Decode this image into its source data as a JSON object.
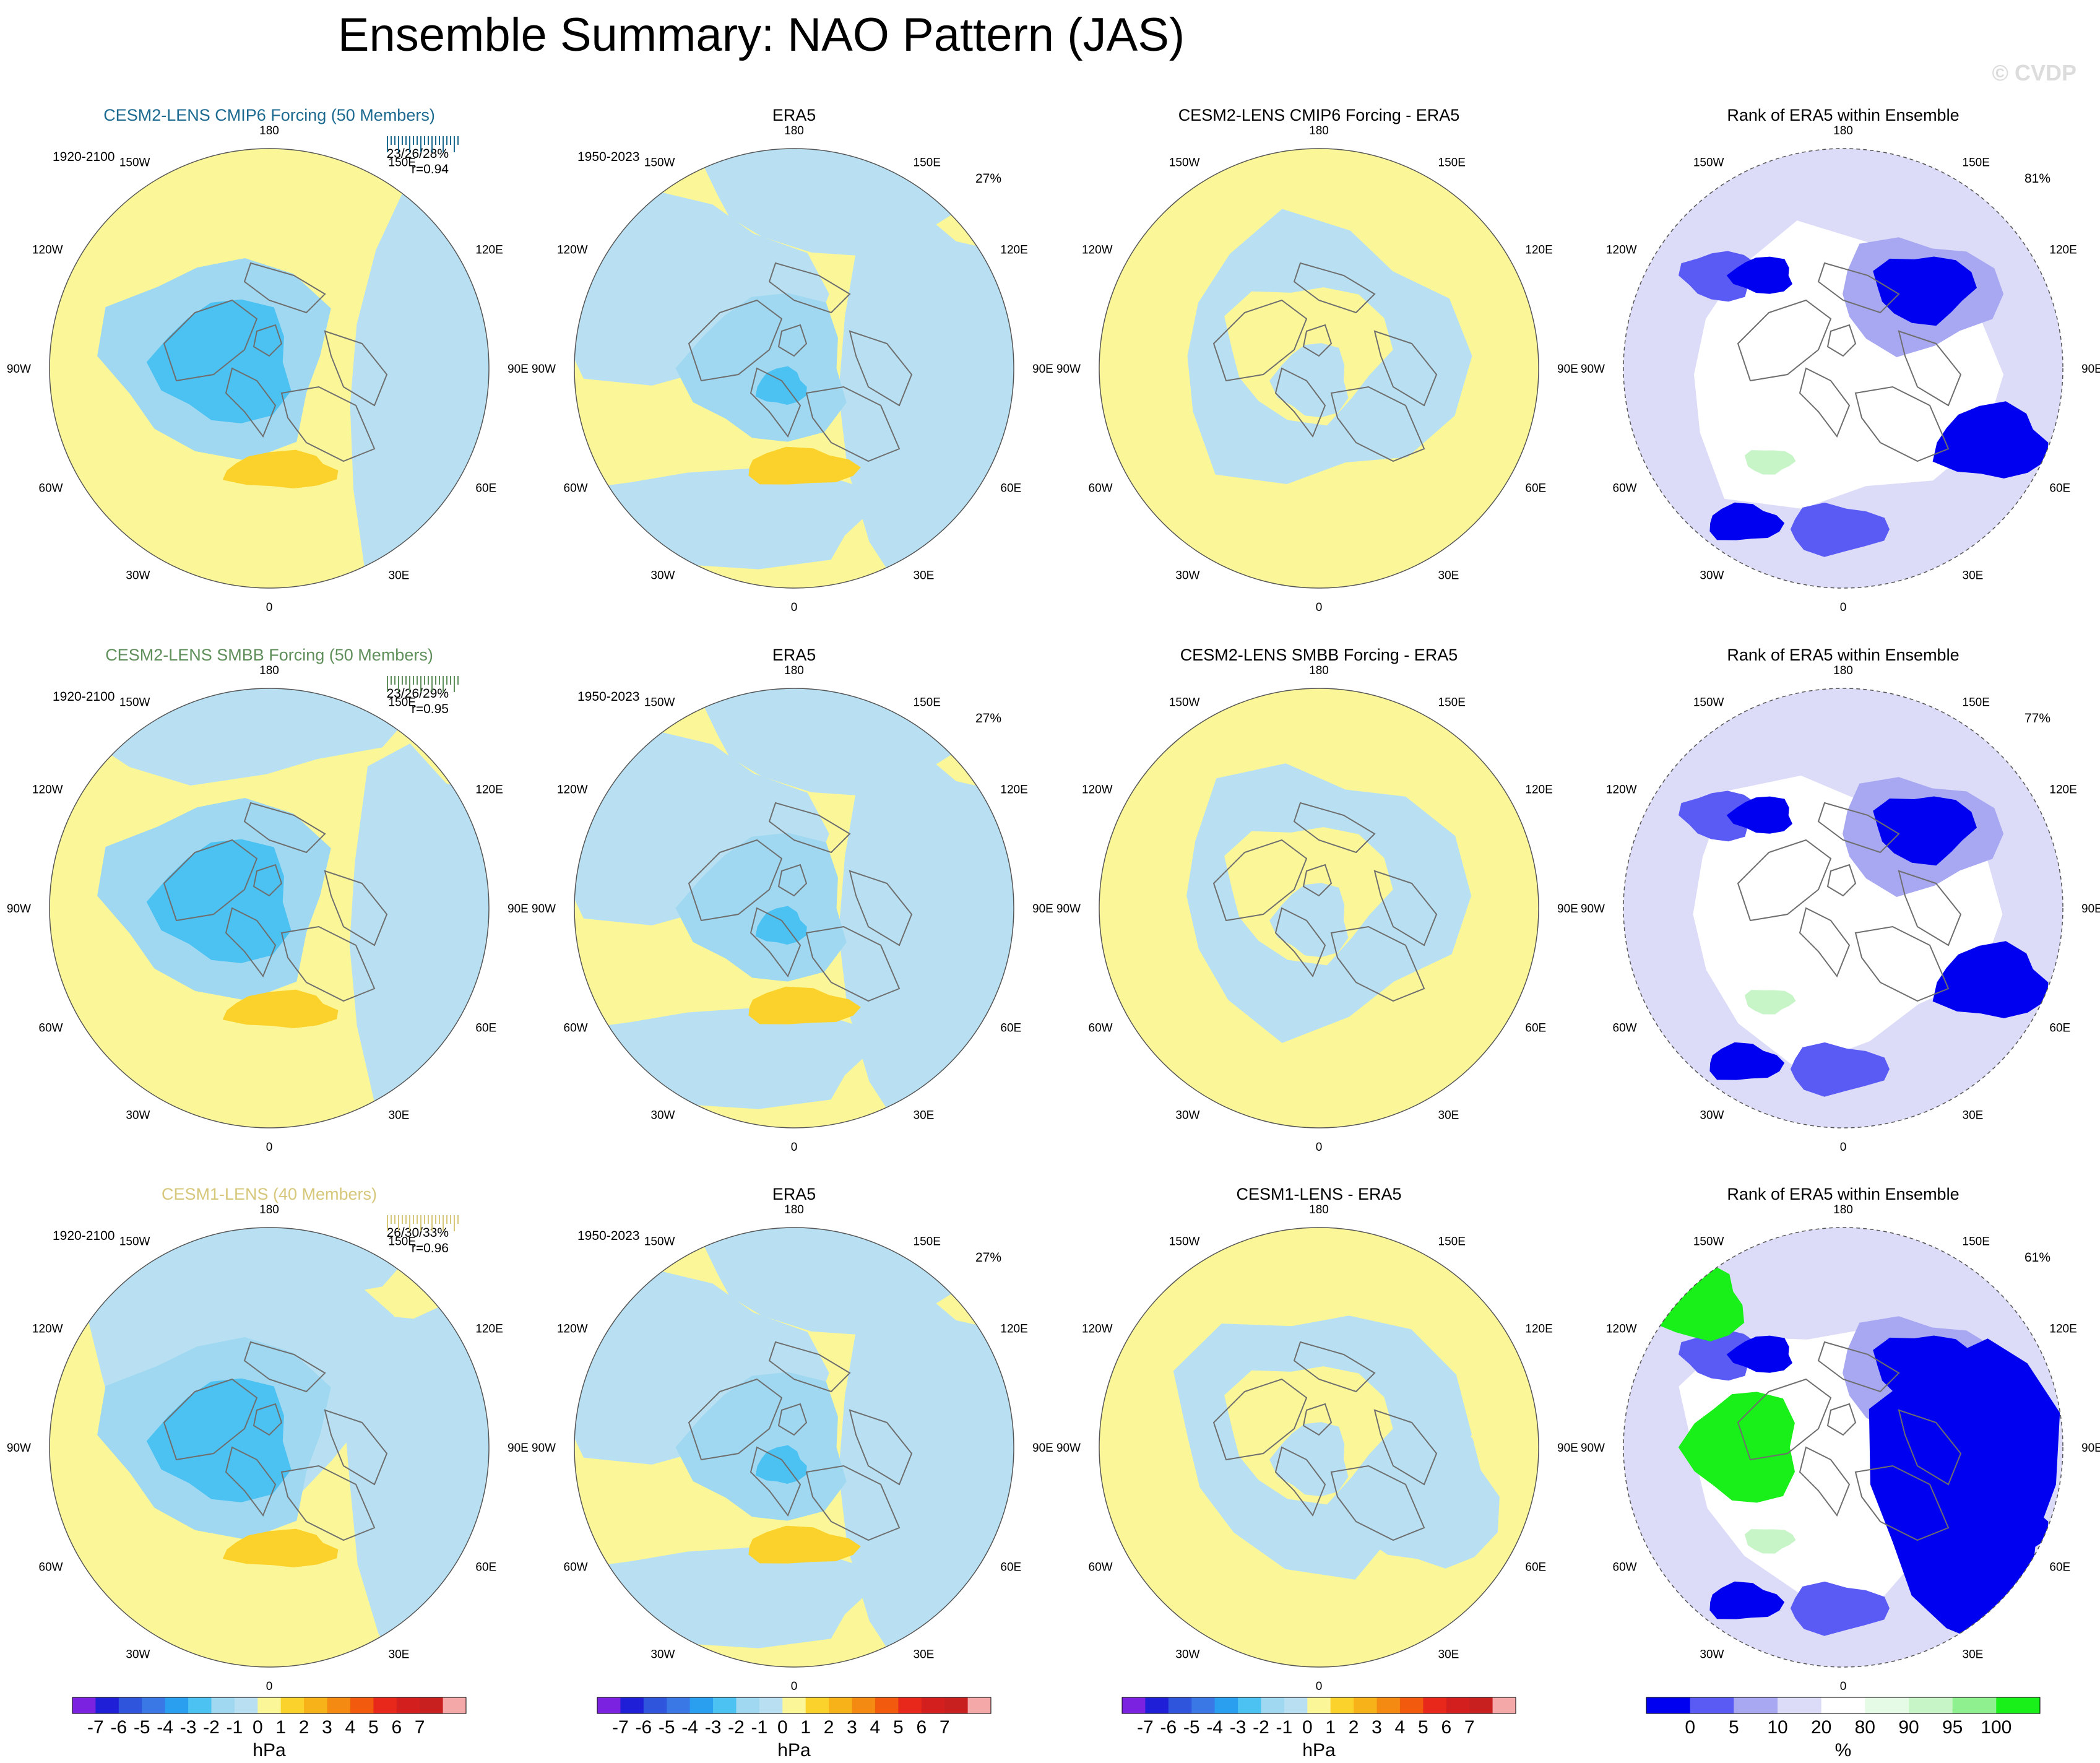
{
  "title": "Ensemble Summary: NAO Pattern (JAS)",
  "watermark": "© CVDP",
  "lon_labels": [
    "180",
    "150E",
    "120E",
    "90E",
    "60E",
    "30E",
    "0",
    "30W",
    "60W",
    "90W",
    "120W",
    "150W"
  ],
  "colors": {
    "land_outline": "#6e6e6e",
    "hpa_scale": [
      "#7b22e0",
      "#1f1fd8",
      "#2f55dd",
      "#3a78e6",
      "#2a9ff0",
      "#4cc2f2",
      "#9fd8f0",
      "#b8e0f2",
      "#fbf799",
      "#fbd22c",
      "#f7b21a",
      "#f58a12",
      "#f25a0e",
      "#e8281a",
      "#d41f1f",
      "#c8201f",
      "#f4a8a8"
    ],
    "rank_scale": [
      "#0000f0",
      "#5a5af5",
      "#a8a8f2",
      "#dcdcf8",
      "#ffffff",
      "#e6fbe6",
      "#c8f5c8",
      "#8ff08f",
      "#19f019"
    ]
  },
  "rows": [
    {
      "model_title": "CESM2-LENS CMIP6 Forcing (50 Members)",
      "model_title_color": "#1c6a90",
      "model_period": "1920-2100",
      "model_stats": "23/26/28%",
      "model_corr": "r=0.94",
      "obs_title": "ERA5",
      "obs_period": "1950-2023",
      "obs_pct": "27%",
      "diff_title": "CESM2-LENS CMIP6 Forcing - ERA5",
      "rank_title": "Rank of ERA5 within Ensemble",
      "rank_pct": "81%"
    },
    {
      "model_title": "CESM2-LENS SMBB Forcing (50 Members)",
      "model_title_color": "#5f8f5a",
      "model_period": "1920-2100",
      "model_stats": "23/26/29%",
      "model_corr": "r=0.95",
      "obs_title": "ERA5",
      "obs_period": "1950-2023",
      "obs_pct": "27%",
      "diff_title": "CESM2-LENS SMBB Forcing - ERA5",
      "rank_title": "Rank of ERA5 within Ensemble",
      "rank_pct": "77%"
    },
    {
      "model_title": "CESM1-LENS (40 Members)",
      "model_title_color": "#d6c77a",
      "model_period": "1920-2100",
      "model_stats": "26/30/33%",
      "model_corr": "r=0.96",
      "obs_title": "ERA5",
      "obs_period": "1950-2023",
      "obs_pct": "27%",
      "diff_title": "CESM1-LENS - ERA5",
      "rank_title": "Rank of ERA5 within Ensemble",
      "rank_pct": "61%"
    }
  ],
  "colorbars": [
    {
      "unit": "hPa",
      "tick_labels": [
        "-7",
        "-6",
        "-5",
        "-4",
        "-3",
        "-2",
        "-1",
        "0",
        "1",
        "2",
        "3",
        "4",
        "5",
        "6",
        "7"
      ]
    },
    {
      "unit": "hPa",
      "tick_labels": [
        "-7",
        "-6",
        "-5",
        "-4",
        "-3",
        "-2",
        "-1",
        "0",
        "1",
        "2",
        "3",
        "4",
        "5",
        "6",
        "7"
      ]
    },
    {
      "unit": "hPa",
      "tick_labels": [
        "-7",
        "-6",
        "-5",
        "-4",
        "-3",
        "-2",
        "-1",
        "0",
        "1",
        "2",
        "3",
        "4",
        "5",
        "6",
        "7"
      ]
    },
    {
      "unit": "%",
      "tick_labels": [
        "0",
        "5",
        "10",
        "20",
        "80",
        "90",
        "95",
        "100"
      ]
    }
  ],
  "chart_data": {
    "type": "heatmap",
    "projection": "north polar stereographic",
    "title": "Ensemble Summary: NAO Pattern (JAS)",
    "panels_layout": "3 rows x 4 columns",
    "columns": [
      "ensemble mean NAO pattern",
      "ERA5 observed pattern",
      "ensemble minus ERA5",
      "rank of ERA5 within ensemble"
    ],
    "hpa_contour_levels": [
      -7,
      -6,
      -5,
      -4,
      -3,
      -2,
      -1,
      0,
      1,
      2,
      3,
      4,
      5,
      6,
      7
    ],
    "rank_levels_percent": [
      0,
      5,
      10,
      20,
      80,
      90,
      95,
      100
    ],
    "longitude_labels": [
      "180",
      "150E",
      "120E",
      "90E",
      "60E",
      "30E",
      "0",
      "30W",
      "60W",
      "90W",
      "120W",
      "150W"
    ]
  }
}
